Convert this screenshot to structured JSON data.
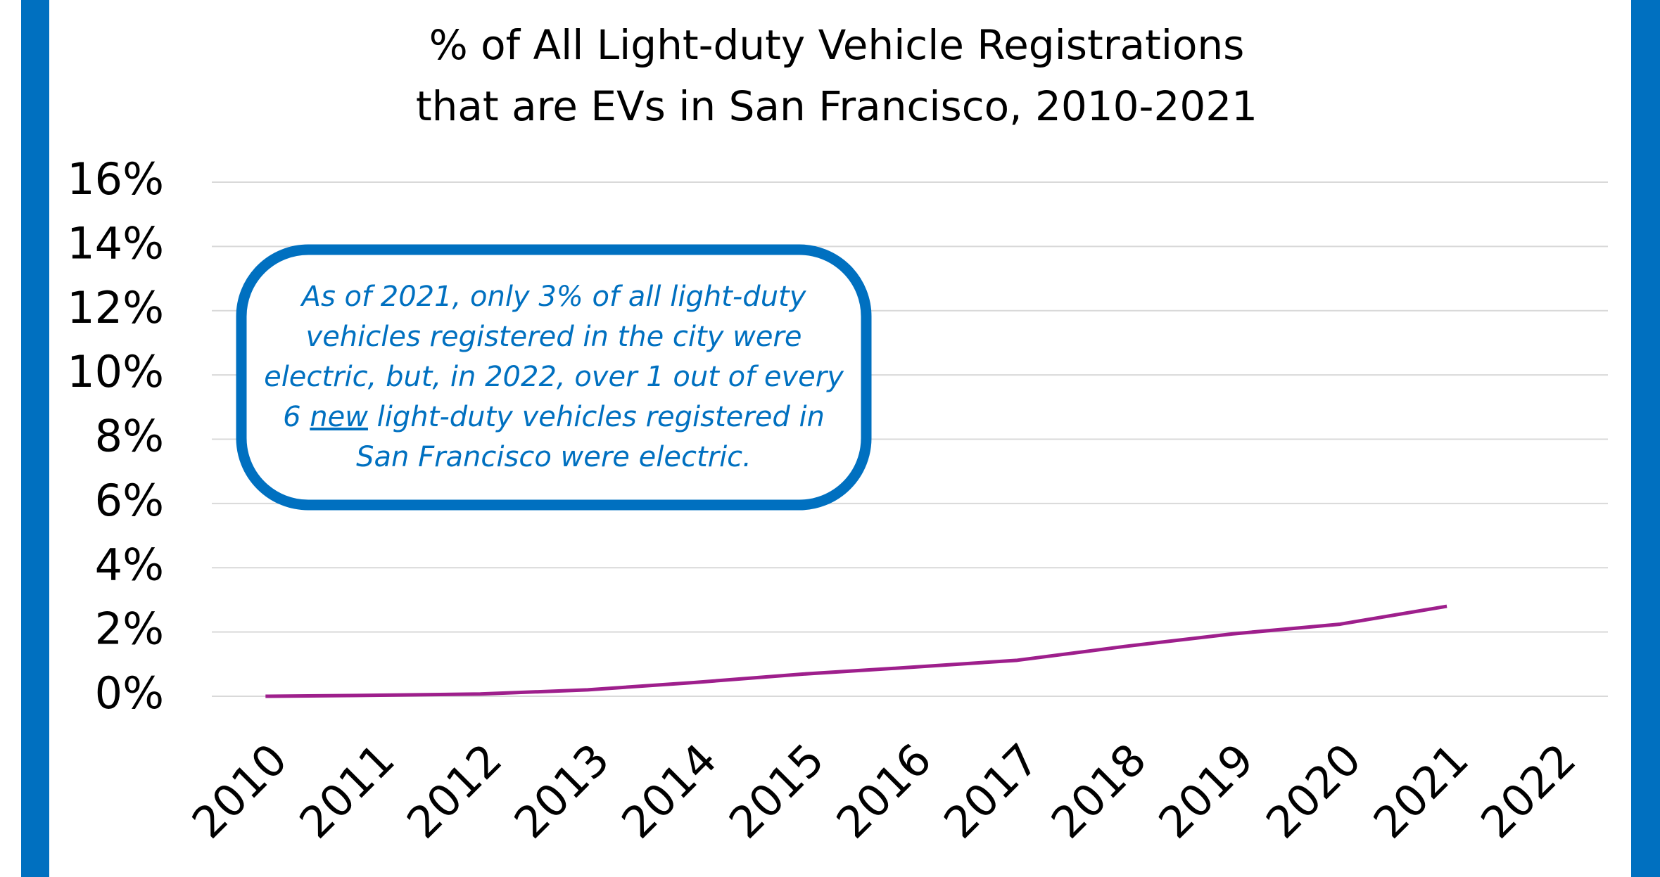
{
  "chart_data": {
    "type": "line",
    "title": [
      "% of All Light-duty Vehicle Registrations",
      "that are EVs in San Francisco, 2010-2021"
    ],
    "categories": [
      "2010",
      "2011",
      "2012",
      "2013",
      "2014",
      "2015",
      "2016",
      "2017",
      "2018",
      "2019",
      "2020",
      "2021",
      "2022"
    ],
    "series": [
      {
        "color": "#9e1f8c",
        "values": [
          0,
          0.03,
          0.07,
          0.2,
          0.43,
          0.69,
          0.9,
          1.12,
          1.55,
          1.94,
          2.24,
          2.8,
          null
        ]
      }
    ],
    "ylim": [
      0,
      16
    ],
    "yticks": [
      {
        "value": 0,
        "label": "0%"
      },
      {
        "value": 2,
        "label": "2%"
      },
      {
        "value": 4,
        "label": "4%"
      },
      {
        "value": 6,
        "label": "6%"
      },
      {
        "value": 8,
        "label": "8%"
      },
      {
        "value": 10,
        "label": "10%"
      },
      {
        "value": 12,
        "label": "12%"
      },
      {
        "value": 14,
        "label": "14%"
      },
      {
        "value": 16,
        "label": "16%"
      }
    ],
    "grid": true,
    "annotation": {
      "color": "#0070c0",
      "lines": [
        [
          "As of 2021, only 3% of all light-duty"
        ],
        [
          "vehicles registered in the city were"
        ],
        [
          "electric, but, in 2022, over 1 out of every"
        ],
        [
          "6",
          "new",
          "light-duty vehicles registered in"
        ],
        [
          "San Francisco were electric."
        ]
      ],
      "underline": [
        3,
        1
      ]
    }
  }
}
